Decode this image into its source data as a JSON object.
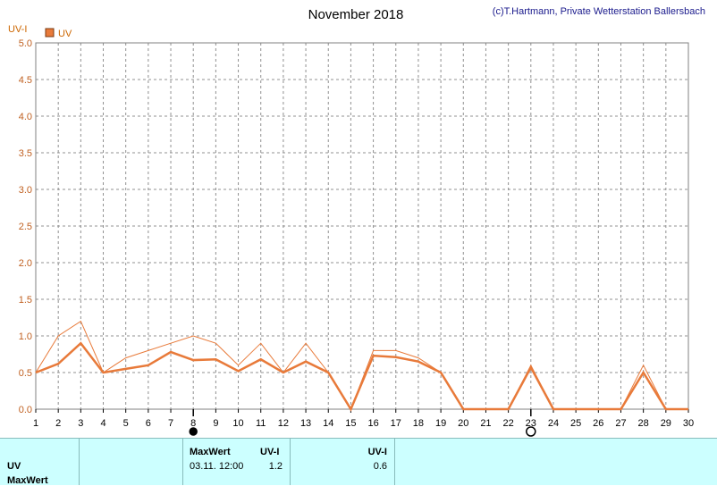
{
  "header": {
    "title": "November 2018",
    "copyright": "(c)T.Hartmann, Private Wetterstation Ballersbach"
  },
  "chart_data": {
    "type": "line",
    "ylabel": "UV-I",
    "ylim": [
      0,
      5
    ],
    "yticks": [
      "0.0",
      "0.5",
      "1.0",
      "1.5",
      "2.0",
      "2.5",
      "3.0",
      "3.5",
      "4.0",
      "4.5",
      "5.0"
    ],
    "xlim": [
      1,
      30
    ],
    "x": [
      1,
      2,
      3,
      4,
      5,
      6,
      7,
      8,
      9,
      10,
      11,
      12,
      13,
      14,
      15,
      16,
      17,
      18,
      19,
      20,
      21,
      22,
      23,
      24,
      25,
      26,
      27,
      28,
      29,
      30
    ],
    "grid": true,
    "legend_placement": "top-left",
    "series": [
      {
        "name": "UV",
        "color": "#e87a3a",
        "style": "thick",
        "values": [
          0.5,
          0.62,
          0.9,
          0.5,
          0.55,
          0.6,
          0.78,
          0.67,
          0.68,
          0.52,
          0.68,
          0.5,
          0.65,
          0.5,
          0,
          0.73,
          0.71,
          0.65,
          0.5,
          0,
          0,
          0,
          0.57,
          0,
          0,
          0,
          0,
          0.5,
          0,
          0
        ]
      },
      {
        "color": "#e87a3a",
        "style": "thin",
        "values": [
          0.5,
          1.0,
          1.2,
          0.5,
          0.7,
          0.8,
          0.9,
          1.0,
          0.9,
          0.6,
          0.9,
          0.5,
          0.9,
          0.5,
          0,
          0.8,
          0.8,
          0.7,
          0.5,
          0,
          0,
          0,
          0.6,
          0,
          0,
          0,
          0,
          0.6,
          0,
          0
        ]
      }
    ],
    "moon_phases": [
      {
        "day": 8,
        "phase": "new-moon",
        "symbol": "●"
      },
      {
        "day": 23,
        "phase": "full-moon",
        "symbol": "○"
      }
    ]
  },
  "footer": {
    "row_label_uv": "UV",
    "row_label_maxwert": "MaxWert",
    "col_maxwert_header": "MaxWert",
    "col_uvi_header": "UV-I",
    "col_uvi_header2": "UV-I",
    "max_date": "03.11.  12:00",
    "max_value": "1.2",
    "avg_value": "0.6"
  }
}
